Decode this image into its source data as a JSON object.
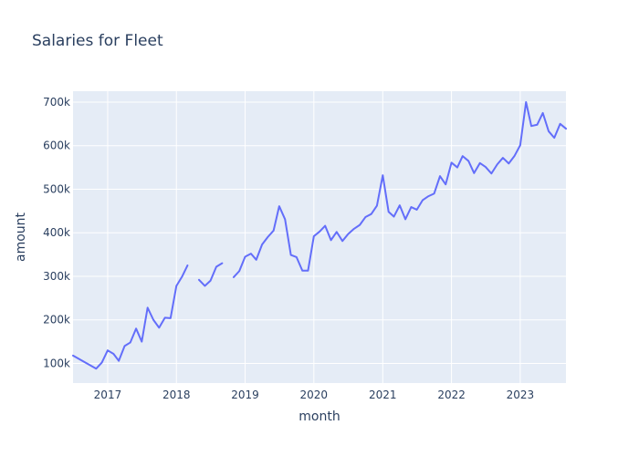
{
  "chart_data": {
    "type": "line",
    "title": "Salaries for Fleet",
    "xlabel": "month",
    "ylabel": "amount",
    "xlim": [
      "2016-07-01",
      "2023-09-01"
    ],
    "ylim": [
      55000,
      725000
    ],
    "x_ticks": [
      {
        "date": "2017-01-01",
        "label": "2017"
      },
      {
        "date": "2018-01-01",
        "label": "2018"
      },
      {
        "date": "2019-01-01",
        "label": "2019"
      },
      {
        "date": "2020-01-01",
        "label": "2020"
      },
      {
        "date": "2021-01-01",
        "label": "2021"
      },
      {
        "date": "2022-01-01",
        "label": "2022"
      },
      {
        "date": "2023-01-01",
        "label": "2023"
      }
    ],
    "y_ticks": [
      {
        "value": 100000,
        "label": "100k"
      },
      {
        "value": 200000,
        "label": "200k"
      },
      {
        "value": 300000,
        "label": "300k"
      },
      {
        "value": 400000,
        "label": "400k"
      },
      {
        "value": 500000,
        "label": "500k"
      },
      {
        "value": 600000,
        "label": "600k"
      },
      {
        "value": 700000,
        "label": "700k"
      }
    ],
    "grid": true,
    "series": [
      {
        "color": "#636efa",
        "points": [
          [
            "2016-07-01",
            118000
          ],
          [
            "2016-11-01",
            88000
          ],
          [
            "2016-12-01",
            102000
          ],
          [
            "2017-01-01",
            130000
          ],
          [
            "2017-02-01",
            122000
          ],
          [
            "2017-03-01",
            106000
          ],
          [
            "2017-04-01",
            140000
          ],
          [
            "2017-05-01",
            148000
          ],
          [
            "2017-06-01",
            180000
          ],
          [
            "2017-07-01",
            150000
          ],
          [
            "2017-08-01",
            228000
          ],
          [
            "2017-09-01",
            200000
          ],
          [
            "2017-10-01",
            182000
          ],
          [
            "2017-11-01",
            205000
          ],
          [
            "2017-12-01",
            204000
          ],
          [
            "2018-01-01",
            278000
          ],
          [
            "2018-02-01",
            300000
          ],
          [
            "2018-03-01",
            325000
          ],
          [
            "2018-04-01",
            null
          ],
          [
            "2018-05-01",
            292000
          ],
          [
            "2018-06-01",
            278000
          ],
          [
            "2018-07-01",
            290000
          ],
          [
            "2018-08-01",
            322000
          ],
          [
            "2018-09-01",
            330000
          ],
          [
            "2018-10-01",
            null
          ],
          [
            "2018-11-01",
            298000
          ],
          [
            "2018-12-01",
            312000
          ],
          [
            "2019-01-01",
            345000
          ],
          [
            "2019-02-01",
            352000
          ],
          [
            "2019-03-01",
            338000
          ],
          [
            "2019-04-01",
            373000
          ],
          [
            "2019-05-01",
            390000
          ],
          [
            "2019-06-01",
            405000
          ],
          [
            "2019-07-01",
            461000
          ],
          [
            "2019-08-01",
            431000
          ],
          [
            "2019-09-01",
            349000
          ],
          [
            "2019-10-01",
            344000
          ],
          [
            "2019-11-01",
            313000
          ],
          [
            "2019-12-01",
            313000
          ],
          [
            "2020-01-01",
            392000
          ],
          [
            "2020-02-01",
            403000
          ],
          [
            "2020-03-01",
            416000
          ],
          [
            "2020-04-01",
            383000
          ],
          [
            "2020-05-01",
            402000
          ],
          [
            "2020-06-01",
            381000
          ],
          [
            "2020-07-01",
            397000
          ],
          [
            "2020-08-01",
            409000
          ],
          [
            "2020-09-01",
            418000
          ],
          [
            "2020-10-01",
            436000
          ],
          [
            "2020-11-01",
            443000
          ],
          [
            "2020-12-01",
            462000
          ],
          [
            "2021-01-01",
            532000
          ],
          [
            "2021-02-01",
            448000
          ],
          [
            "2021-03-01",
            437000
          ],
          [
            "2021-04-01",
            463000
          ],
          [
            "2021-05-01",
            431000
          ],
          [
            "2021-06-01",
            459000
          ],
          [
            "2021-07-01",
            453000
          ],
          [
            "2021-08-01",
            475000
          ],
          [
            "2021-09-01",
            484000
          ],
          [
            "2021-10-01",
            490000
          ],
          [
            "2021-11-01",
            530000
          ],
          [
            "2021-12-01",
            511000
          ],
          [
            "2022-01-01",
            561000
          ],
          [
            "2022-02-01",
            550000
          ],
          [
            "2022-03-01",
            576000
          ],
          [
            "2022-04-01",
            565000
          ],
          [
            "2022-05-01",
            537000
          ],
          [
            "2022-06-01",
            560000
          ],
          [
            "2022-07-01",
            551000
          ],
          [
            "2022-08-01",
            536000
          ],
          [
            "2022-09-01",
            557000
          ],
          [
            "2022-10-01",
            572000
          ],
          [
            "2022-11-01",
            559000
          ],
          [
            "2022-12-01",
            576000
          ],
          [
            "2023-01-01",
            601000
          ],
          [
            "2023-02-01",
            700000
          ],
          [
            "2023-03-01",
            645000
          ],
          [
            "2023-04-01",
            648000
          ],
          [
            "2023-05-01",
            675000
          ],
          [
            "2023-06-01",
            633000
          ],
          [
            "2023-07-01",
            618000
          ],
          [
            "2023-08-01",
            650000
          ],
          [
            "2023-09-01",
            639000
          ]
        ]
      }
    ],
    "colors": {
      "plot_background": "#e5ecf6",
      "paper_background": "#ffffff",
      "gridline": "#ffffff",
      "text": "#2a3f5f",
      "line": "#636efa"
    }
  }
}
